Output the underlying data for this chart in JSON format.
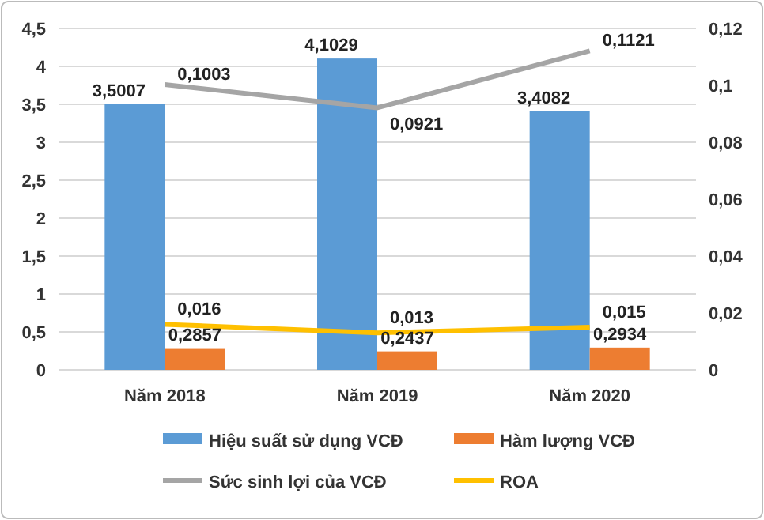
{
  "chart_data": {
    "type": "bar",
    "categories": [
      "Năm 2018",
      "Năm 2019",
      "Năm 2020"
    ],
    "series": [
      {
        "name": "Hiệu suất sử dụng VCĐ",
        "color": "#5b9bd5",
        "values": [
          3.5007,
          4.1029,
          3.4082
        ],
        "value_labels": [
          "3,5007",
          "4,1029",
          "3,4082"
        ]
      },
      {
        "name": "Hàm lượng VCĐ",
        "color": "#ed7d31",
        "values": [
          0.2857,
          0.2437,
          0.2934
        ],
        "value_labels": [
          "0,2857",
          "0,2437",
          "0,2934"
        ]
      },
      {
        "name": "Sức sinh lợi của VCĐ",
        "type": "line",
        "axis": "y2",
        "color": "#a5a5a5",
        "values": [
          0.1003,
          0.0921,
          0.1121
        ],
        "value_labels": [
          "0,1003",
          "0,0921",
          "0,1121"
        ]
      },
      {
        "name": "ROA",
        "type": "line",
        "axis": "y2",
        "color": "#ffc000",
        "values": [
          0.016,
          0.013,
          0.015
        ],
        "value_labels": [
          "0,016",
          "0,013",
          "0,015"
        ]
      }
    ],
    "ylim": [
      0,
      4.5
    ],
    "yticks": [
      0,
      {
        "value": 0.5,
        "label": "0,5"
      },
      1,
      {
        "value": 1.5,
        "label": "1,5"
      },
      2,
      {
        "value": 2.5,
        "label": "2,5"
      },
      3,
      {
        "value": 3.5,
        "label": "3,5"
      },
      4,
      {
        "value": 4.5,
        "label": "4,5"
      }
    ],
    "y2lim": [
      0,
      0.12
    ],
    "y2ticks": [
      0,
      {
        "value": 0.02,
        "label": "0,02"
      },
      {
        "value": 0.04,
        "label": "0,04"
      },
      {
        "value": 0.06,
        "label": "0,06"
      },
      {
        "value": 0.08,
        "label": "0,08"
      },
      {
        "value": 0.1,
        "label": "0,1"
      },
      {
        "value": 0.12,
        "label": "0,12"
      }
    ],
    "grid": "y",
    "legend": "bottom",
    "marker": "none",
    "line_style": "solid"
  }
}
